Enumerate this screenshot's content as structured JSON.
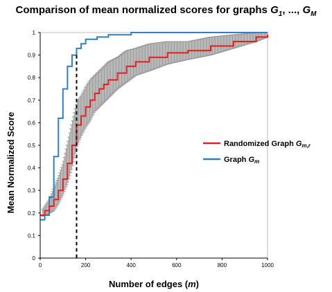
{
  "chart_data": {
    "type": "line",
    "title": "Comparison of mean normalized scores for graphs G1, ..., GM",
    "title_parts": {
      "prefix": "Comparison of mean normalized scores for graphs ",
      "g": "G",
      "sub1": "1",
      "middle": ", ..., ",
      "sub_m": "M"
    },
    "xlabel": "Number of edges (m)",
    "xlabel_parts": {
      "prefix": "Number of edges (",
      "var": "m",
      "suffix": ")"
    },
    "ylabel": "Mean Normalized Score",
    "xlim": [
      0,
      1000
    ],
    "ylim": [
      0,
      1
    ],
    "x_ticks": [
      "0",
      "200",
      "400",
      "600",
      "800",
      "1000"
    ],
    "y_ticks": [
      "0",
      "0.1",
      "0.2",
      "0.3",
      "0.4",
      "0.5",
      "0.6",
      "0.7",
      "0.8",
      "0.9",
      "1"
    ],
    "grid": false,
    "legend_position": "right",
    "vertical_marker": {
      "x": 160,
      "style": "dashed"
    },
    "series": [
      {
        "name": "Randomized Graph Gm,r",
        "label_main": "Randomized Graph ",
        "label_var": "G",
        "label_sub": "m,r",
        "color": "#e02020",
        "x": [
          0,
          20,
          40,
          60,
          80,
          100,
          120,
          140,
          160,
          180,
          200,
          220,
          240,
          260,
          280,
          300,
          340,
          380,
          420,
          480,
          560,
          650,
          750,
          850,
          950,
          1000
        ],
        "y": [
          0.19,
          0.21,
          0.23,
          0.26,
          0.3,
          0.35,
          0.42,
          0.5,
          0.59,
          0.63,
          0.67,
          0.7,
          0.73,
          0.75,
          0.77,
          0.79,
          0.82,
          0.85,
          0.87,
          0.89,
          0.91,
          0.92,
          0.94,
          0.96,
          0.98,
          0.99
        ],
        "err": [
          0.01,
          0.02,
          0.03,
          0.05,
          0.06,
          0.07,
          0.09,
          0.1,
          0.1,
          0.09,
          0.09,
          0.09,
          0.08,
          0.08,
          0.08,
          0.08,
          0.07,
          0.07,
          0.06,
          0.06,
          0.05,
          0.04,
          0.04,
          0.03,
          0.02,
          0.01
        ]
      },
      {
        "name": "Graph Gm",
        "label_main": "Graph ",
        "label_var": "G",
        "label_sub": "m",
        "color": "#2e7fc8",
        "x": [
          0,
          20,
          40,
          60,
          80,
          100,
          120,
          140,
          160,
          180,
          200,
          250,
          300,
          400,
          500,
          600,
          800,
          1000
        ],
        "y": [
          0.17,
          0.19,
          0.27,
          0.45,
          0.62,
          0.75,
          0.85,
          0.9,
          0.93,
          0.95,
          0.97,
          0.98,
          0.99,
          1.0,
          1.0,
          1.0,
          1.0,
          1.0
        ]
      }
    ],
    "colors": {
      "errorbar": "#999999",
      "axis": "#000000"
    }
  }
}
